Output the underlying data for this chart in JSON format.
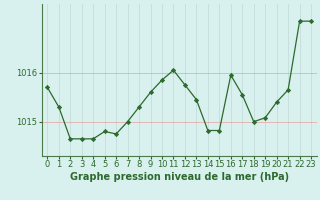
{
  "x": [
    0,
    1,
    2,
    3,
    4,
    5,
    6,
    7,
    8,
    9,
    10,
    11,
    12,
    13,
    14,
    15,
    16,
    17,
    18,
    19,
    20,
    21,
    22,
    23
  ],
  "y": [
    1015.7,
    1015.3,
    1014.65,
    1014.65,
    1014.65,
    1014.8,
    1014.75,
    1015.0,
    1015.3,
    1015.6,
    1015.85,
    1016.05,
    1015.75,
    1015.45,
    1014.82,
    1014.82,
    1015.95,
    1015.55,
    1015.0,
    1015.08,
    1015.4,
    1015.65,
    1017.05,
    1017.05
  ],
  "line_color": "#2d6a2d",
  "marker": "D",
  "marker_size": 2.2,
  "bg_color": "#d8f0ee",
  "grid_color_v": "#c0d8d6",
  "grid_color_h": "#e8a0a0",
  "tick_color": "#2d6a2d",
  "xlabel": "Graphe pression niveau de la mer (hPa)",
  "xlabel_color": "#2d6a2d",
  "yticks": [
    1015,
    1016
  ],
  "ylim": [
    1014.3,
    1017.4
  ],
  "xlim": [
    -0.5,
    23.5
  ],
  "xtick_labels": [
    "0",
    "1",
    "2",
    "3",
    "4",
    "5",
    "6",
    "7",
    "8",
    "9",
    "10",
    "11",
    "12",
    "13",
    "14",
    "15",
    "16",
    "17",
    "18",
    "19",
    "20",
    "21",
    "22",
    "23"
  ],
  "xlabel_fontsize": 7,
  "tick_fontsize": 6
}
